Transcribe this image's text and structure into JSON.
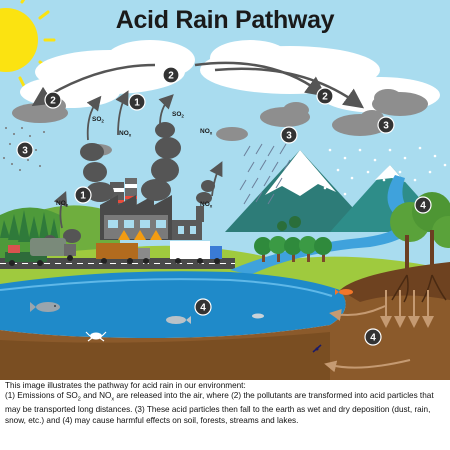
{
  "title": "Acid Rain Pathway",
  "pollutants": {
    "so2_text": "SO",
    "so2_sub": "2",
    "nox_text": "NO",
    "nox_sub": "x"
  },
  "step_numbers": [
    "1",
    "2",
    "3",
    "4"
  ],
  "caption": {
    "line1": "This image illustrates the pathway for acid rain in our environment:",
    "p1": "(1) Emissions of SO",
    "p1_sub": "2",
    "p2": " and NO",
    "p2_sub": "x",
    "p3": " are released into the air, where (2) the pollutants are transformed into acid particles that may be transported long distances.  (3) These acid particles then fall to the earth as wet and dry deposition (dust, rain, snow, etc.) and (4) may cause harmful effects on soil, forests, streams and lakes."
  },
  "colors": {
    "sky": "#a9dcef",
    "badge": "#333333",
    "lake": "#1f8ac9",
    "soil": "#8b5a2b",
    "grass": "#9fca3e",
    "sun": "#fbe311",
    "arrow": "#555555"
  }
}
